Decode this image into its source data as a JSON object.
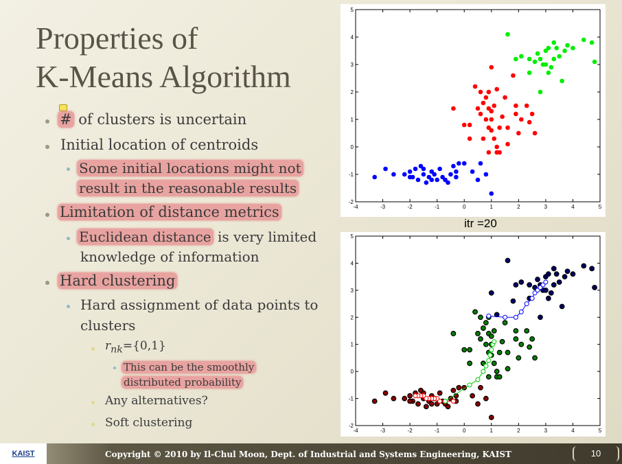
{
  "slide": {
    "title_line1": "Properties of",
    "title_line2": "K-Means Algorithm"
  },
  "bullets": {
    "b1_hash": "#",
    "b1_rest": " of clusters is uncertain",
    "b2": "Initial location of centroids",
    "b2_1_line1": "Some initial locations might not",
    "b2_1_line2": "result in the reasonable results",
    "b3": "Limitation of distance metrics",
    "b3_1_hl": "Euclidean distance",
    "b3_1_rest": " is very limited",
    "b3_1_line2": "knowledge of information",
    "b4": "Hard clustering",
    "b4_1_line1": "Hard assignment of data points to",
    "b4_1_line2": "clusters",
    "b4_1_1_var": "r",
    "b4_1_1_sub": "nk",
    "b4_1_1_rest": "={0,1}",
    "b4_1_1_1_line1": "This can be the smoothly",
    "b4_1_1_1_line2": "distributed probability",
    "b4_1_2": "Any alternatives?",
    "b4_1_3": "Soft clustering"
  },
  "chart_label": "itr =20",
  "footer": {
    "logo": "KAIST",
    "copyright": "Copyright © 2010 by Il-Chul Moon, Dept. of Industrial and Systems Engineering, KAIST",
    "page": "10"
  },
  "colors": {
    "c1_top": "#0000ff",
    "c2_top": "#ff0000",
    "c3_top": "#00ee00",
    "c1_bottom": "#8b0000",
    "c2_bottom": "#008000",
    "c3_bottom": "#000066",
    "trail1": "#ff0000",
    "trail2": "#00cc00",
    "trail3": "#0000ff"
  },
  "chart_data": [
    {
      "type": "scatter",
      "xlim": [
        -4,
        5
      ],
      "ylim": [
        -2,
        5
      ],
      "xticks": [
        -4,
        -3,
        -2,
        -1,
        0,
        1,
        2,
        3,
        4,
        5
      ],
      "yticks": [
        -2,
        -1,
        0,
        1,
        2,
        3,
        4,
        5
      ],
      "series": [
        {
          "color": "#0000ff",
          "points": [
            [
              -3.3,
              -1.1
            ],
            [
              -2.9,
              -0.8
            ],
            [
              -2.6,
              -1.0
            ],
            [
              -2.2,
              -1.0
            ],
            [
              -2.0,
              -0.9
            ],
            [
              -1.9,
              -1.1
            ],
            [
              -1.8,
              -0.8
            ],
            [
              -1.7,
              -1.2
            ],
            [
              -1.6,
              -0.7
            ],
            [
              -1.5,
              -1.0
            ],
            [
              -1.4,
              -1.3
            ],
            [
              -1.3,
              -1.1
            ],
            [
              -1.2,
              -0.9
            ],
            [
              -1.1,
              -1.0
            ],
            [
              -1.0,
              -1.2
            ],
            [
              -0.9,
              -0.8
            ],
            [
              -0.8,
              -1.1
            ],
            [
              -0.7,
              -1.2
            ],
            [
              -0.6,
              -1.3
            ],
            [
              -0.5,
              -1.0
            ],
            [
              -0.4,
              -0.7
            ],
            [
              -0.3,
              -1.1
            ],
            [
              -0.2,
              -0.6
            ],
            [
              0.0,
              -0.6
            ],
            [
              0.3,
              -0.9
            ],
            [
              0.5,
              -1.2
            ],
            [
              -0.3,
              -0.9
            ],
            [
              -1.5,
              -0.8
            ],
            [
              -2.0,
              -1.1
            ],
            [
              -1.2,
              -1.2
            ],
            [
              0.6,
              -0.6
            ],
            [
              1.0,
              -1.7
            ],
            [
              0.8,
              -1.0
            ]
          ]
        },
        {
          "color": "#ff0000",
          "points": [
            [
              -0.4,
              1.4
            ],
            [
              0.0,
              0.8
            ],
            [
              0.2,
              0.3
            ],
            [
              0.2,
              0.8
            ],
            [
              0.5,
              1.4
            ],
            [
              0.6,
              2.0
            ],
            [
              0.6,
              1.2
            ],
            [
              0.7,
              1.6
            ],
            [
              0.7,
              0.3
            ],
            [
              0.8,
              1.0
            ],
            [
              0.8,
              1.8
            ],
            [
              0.9,
              1.4
            ],
            [
              0.9,
              0.7
            ],
            [
              0.9,
              -0.2
            ],
            [
              1.0,
              1.3
            ],
            [
              1.0,
              1.0
            ],
            [
              1.0,
              0.6
            ],
            [
              1.0,
              2.9
            ],
            [
              1.1,
              1.5
            ],
            [
              1.1,
              0.3
            ],
            [
              1.2,
              0.0
            ],
            [
              1.2,
              2.1
            ],
            [
              1.2,
              -0.2
            ],
            [
              1.3,
              0.7
            ],
            [
              1.3,
              -0.2
            ],
            [
              1.4,
              1.1
            ],
            [
              1.5,
              1.8
            ],
            [
              1.6,
              0.7
            ],
            [
              1.6,
              0.1
            ],
            [
              1.8,
              2.6
            ],
            [
              1.9,
              1.5
            ],
            [
              1.9,
              1.2
            ],
            [
              2.0,
              0.5
            ],
            [
              2.1,
              1.0
            ],
            [
              2.4,
              0.9
            ],
            [
              2.6,
              0.5
            ],
            [
              2.3,
              1.5
            ],
            [
              2.5,
              1.2
            ],
            [
              0.4,
              2.2
            ],
            [
              0.9,
              2.0
            ]
          ]
        },
        {
          "color": "#00ee00",
          "points": [
            [
              1.6,
              4.1
            ],
            [
              1.9,
              3.2
            ],
            [
              2.1,
              3.3
            ],
            [
              2.4,
              2.7
            ],
            [
              2.6,
              3.1
            ],
            [
              2.7,
              3.4
            ],
            [
              2.8,
              3.2
            ],
            [
              2.8,
              2.0
            ],
            [
              2.9,
              3.0
            ],
            [
              3.0,
              3.5
            ],
            [
              3.0,
              3.0
            ],
            [
              3.1,
              2.7
            ],
            [
              3.2,
              2.9
            ],
            [
              3.3,
              3.8
            ],
            [
              3.3,
              3.2
            ],
            [
              3.4,
              3.6
            ],
            [
              3.5,
              3.3
            ],
            [
              3.6,
              2.4
            ],
            [
              3.7,
              3.5
            ],
            [
              3.8,
              3.7
            ],
            [
              4.0,
              3.6
            ],
            [
              4.4,
              3.9
            ],
            [
              4.7,
              3.8
            ],
            [
              4.8,
              3.1
            ],
            [
              2.4,
              3.2
            ],
            [
              3.1,
              3.6
            ]
          ]
        }
      ]
    },
    {
      "type": "scatter",
      "title": "itr =20",
      "xlim": [
        -4,
        5
      ],
      "ylim": [
        -2,
        5
      ],
      "xticks": [
        -4,
        -3,
        -2,
        -1,
        0,
        1,
        2,
        3,
        4,
        5
      ],
      "yticks": [
        -2,
        -1,
        0,
        1,
        2,
        3,
        4,
        5
      ],
      "series": [
        {
          "color": "#8b0000",
          "points": [
            [
              -3.3,
              -1.1
            ],
            [
              -2.9,
              -0.8
            ],
            [
              -2.6,
              -1.0
            ],
            [
              -2.2,
              -1.0
            ],
            [
              -2.0,
              -0.9
            ],
            [
              -1.9,
              -1.1
            ],
            [
              -1.8,
              -0.8
            ],
            [
              -1.7,
              -1.2
            ],
            [
              -1.6,
              -0.7
            ],
            [
              -1.5,
              -1.0
            ],
            [
              -1.4,
              -1.3
            ],
            [
              -1.3,
              -1.1
            ],
            [
              -1.2,
              -0.9
            ],
            [
              -1.1,
              -1.0
            ],
            [
              -1.0,
              -1.2
            ],
            [
              -0.9,
              -0.8
            ],
            [
              -0.8,
              -1.1
            ],
            [
              -0.7,
              -1.2
            ],
            [
              -0.6,
              -1.3
            ],
            [
              -0.5,
              -1.0
            ],
            [
              -0.4,
              -0.7
            ],
            [
              -0.3,
              -1.1
            ],
            [
              -0.2,
              -0.6
            ],
            [
              0.0,
              -0.6
            ],
            [
              0.3,
              -0.9
            ],
            [
              0.5,
              -1.2
            ],
            [
              -0.3,
              -0.9
            ],
            [
              -1.5,
              -0.8
            ],
            [
              -2.0,
              -1.1
            ],
            [
              -1.2,
              -1.2
            ],
            [
              0.6,
              -0.6
            ],
            [
              1.0,
              -1.7
            ],
            [
              0.8,
              -1.0
            ]
          ]
        },
        {
          "color": "#008000",
          "points": [
            [
              -0.4,
              1.4
            ],
            [
              0.0,
              0.8
            ],
            [
              0.2,
              0.3
            ],
            [
              0.2,
              0.8
            ],
            [
              0.5,
              1.4
            ],
            [
              0.6,
              2.0
            ],
            [
              0.6,
              1.2
            ],
            [
              0.7,
              1.6
            ],
            [
              0.7,
              0.3
            ],
            [
              0.8,
              1.0
            ],
            [
              0.8,
              1.8
            ],
            [
              0.9,
              1.4
            ],
            [
              0.9,
              0.7
            ],
            [
              0.9,
              -0.2
            ],
            [
              1.0,
              1.3
            ],
            [
              1.0,
              1.0
            ],
            [
              1.0,
              0.6
            ],
            [
              1.1,
              1.5
            ],
            [
              1.1,
              0.3
            ],
            [
              1.2,
              0.0
            ],
            [
              1.2,
              -0.2
            ],
            [
              1.3,
              0.7
            ],
            [
              1.3,
              -0.2
            ],
            [
              1.4,
              1.1
            ],
            [
              1.5,
              1.8
            ],
            [
              1.6,
              0.7
            ],
            [
              1.6,
              0.1
            ],
            [
              1.9,
              1.5
            ],
            [
              1.9,
              1.2
            ],
            [
              2.0,
              0.5
            ],
            [
              2.1,
              1.0
            ],
            [
              2.4,
              0.9
            ],
            [
              2.6,
              0.5
            ],
            [
              2.3,
              1.5
            ],
            [
              2.5,
              1.2
            ],
            [
              0.4,
              2.2
            ],
            [
              0.9,
              2.0
            ]
          ]
        },
        {
          "color": "#000066",
          "points": [
            [
              1.0,
              2.9
            ],
            [
              1.2,
              2.1
            ],
            [
              1.6,
              4.1
            ],
            [
              1.8,
              2.6
            ],
            [
              1.9,
              3.2
            ],
            [
              2.1,
              3.3
            ],
            [
              2.4,
              2.7
            ],
            [
              2.6,
              3.1
            ],
            [
              2.7,
              3.4
            ],
            [
              2.8,
              3.2
            ],
            [
              2.8,
              2.0
            ],
            [
              2.9,
              3.0
            ],
            [
              3.0,
              3.5
            ],
            [
              3.0,
              3.0
            ],
            [
              3.1,
              2.7
            ],
            [
              3.2,
              2.9
            ],
            [
              3.3,
              3.8
            ],
            [
              3.3,
              3.2
            ],
            [
              3.4,
              3.6
            ],
            [
              3.5,
              3.3
            ],
            [
              3.6,
              2.4
            ],
            [
              3.7,
              3.5
            ],
            [
              3.8,
              3.7
            ],
            [
              4.0,
              3.6
            ],
            [
              4.4,
              3.9
            ],
            [
              4.7,
              3.8
            ],
            [
              4.8,
              3.1
            ],
            [
              2.4,
              3.2
            ],
            [
              3.1,
              3.6
            ]
          ]
        }
      ],
      "centroid_trails": [
        {
          "color": "#ff0000",
          "points": [
            [
              -0.4,
              -1.1
            ],
            [
              -0.7,
              -1.1
            ],
            [
              -0.9,
              -1.1
            ],
            [
              -1.0,
              -1.0
            ],
            [
              -1.1,
              -1.0
            ],
            [
              -1.2,
              -1.0
            ],
            [
              -1.3,
              -1.0
            ],
            [
              -1.4,
              -1.0
            ],
            [
              -1.5,
              -0.9
            ],
            [
              -1.6,
              -0.9
            ],
            [
              -1.7,
              -0.9
            ],
            [
              -1.8,
              -0.9
            ]
          ]
        },
        {
          "color": "#00cc00",
          "points": [
            [
              -0.7,
              -1.1
            ],
            [
              0.2,
              -0.5
            ],
            [
              0.5,
              -0.3
            ],
            [
              0.7,
              0.0
            ],
            [
              0.8,
              0.2
            ],
            [
              0.9,
              0.4
            ],
            [
              0.95,
              0.6
            ],
            [
              1.0,
              0.8
            ],
            [
              1.05,
              1.0
            ],
            [
              1.1,
              1.1
            ]
          ]
        },
        {
          "color": "#0000ff",
          "points": [
            [
              0.9,
              2.05
            ],
            [
              1.5,
              2.0
            ],
            [
              1.9,
              2.0
            ],
            [
              2.1,
              2.2
            ],
            [
              2.3,
              2.5
            ],
            [
              2.5,
              2.7
            ],
            [
              2.6,
              2.9
            ],
            [
              2.7,
              3.0
            ],
            [
              2.8,
              3.1
            ],
            [
              2.9,
              3.2
            ],
            [
              3.0,
              3.3
            ]
          ]
        }
      ]
    }
  ]
}
